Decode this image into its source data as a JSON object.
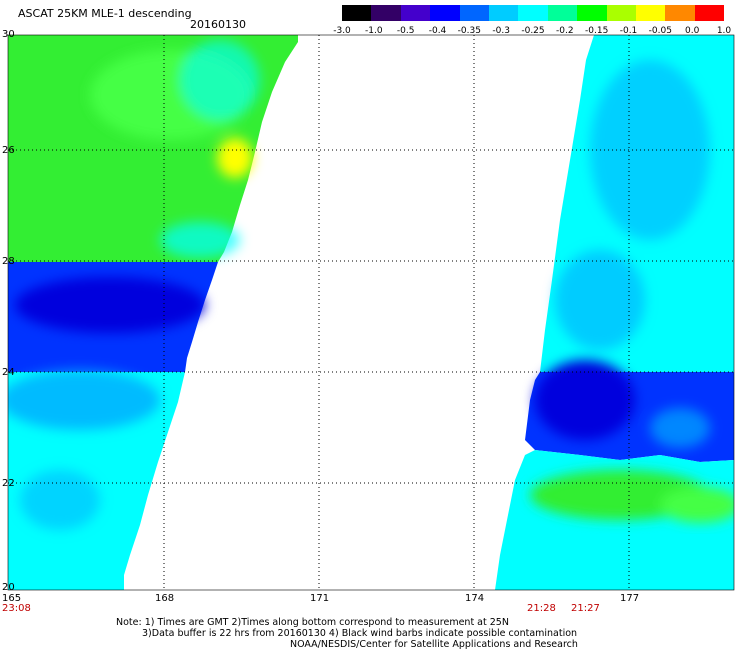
{
  "header": {
    "title": "ASCAT 25KM MLE-1 descending",
    "date": "20160130"
  },
  "colorbar": {
    "labels": [
      "-3.0",
      "-1.0",
      "-0.5",
      "-0.4",
      "-0.35",
      "-0.3",
      "-0.25",
      "-0.2",
      "-0.15",
      "-0.1",
      "-0.05",
      "0.0",
      "1.0"
    ],
    "colors": [
      "#000000",
      "#330066",
      "#4400cc",
      "#0000ff",
      "#0066ff",
      "#00ccff",
      "#00ffff",
      "#00ff99",
      "#00ff00",
      "#aaff00",
      "#ffff00",
      "#ff8800",
      "#ff0000"
    ]
  },
  "map": {
    "lat_labels": [
      "30",
      "26",
      "28",
      "24",
      "22",
      "20"
    ],
    "lon_labels": [
      "165",
      "168",
      "171",
      "174",
      "177"
    ],
    "time_labels": [
      "23:08",
      "21:28",
      "21:27"
    ],
    "colors": {
      "green": "#33ee33",
      "light_green": "#44ff44",
      "yellow": "#ffff00",
      "cyan": "#00ffff",
      "blue": "#0033ff",
      "deep_blue": "#0000dd",
      "sky": "#00aaff"
    }
  },
  "notes": {
    "line1": "Note: 1) Times are GMT 2)Times along bottom correspond to measurement at 25N",
    "line2": "3)Data buffer is 22 hrs from 20160130 4) Black wind barbs indicate possible contamination",
    "line3": "NOAA/NESDIS/Center for Satellite Applications and Research"
  }
}
